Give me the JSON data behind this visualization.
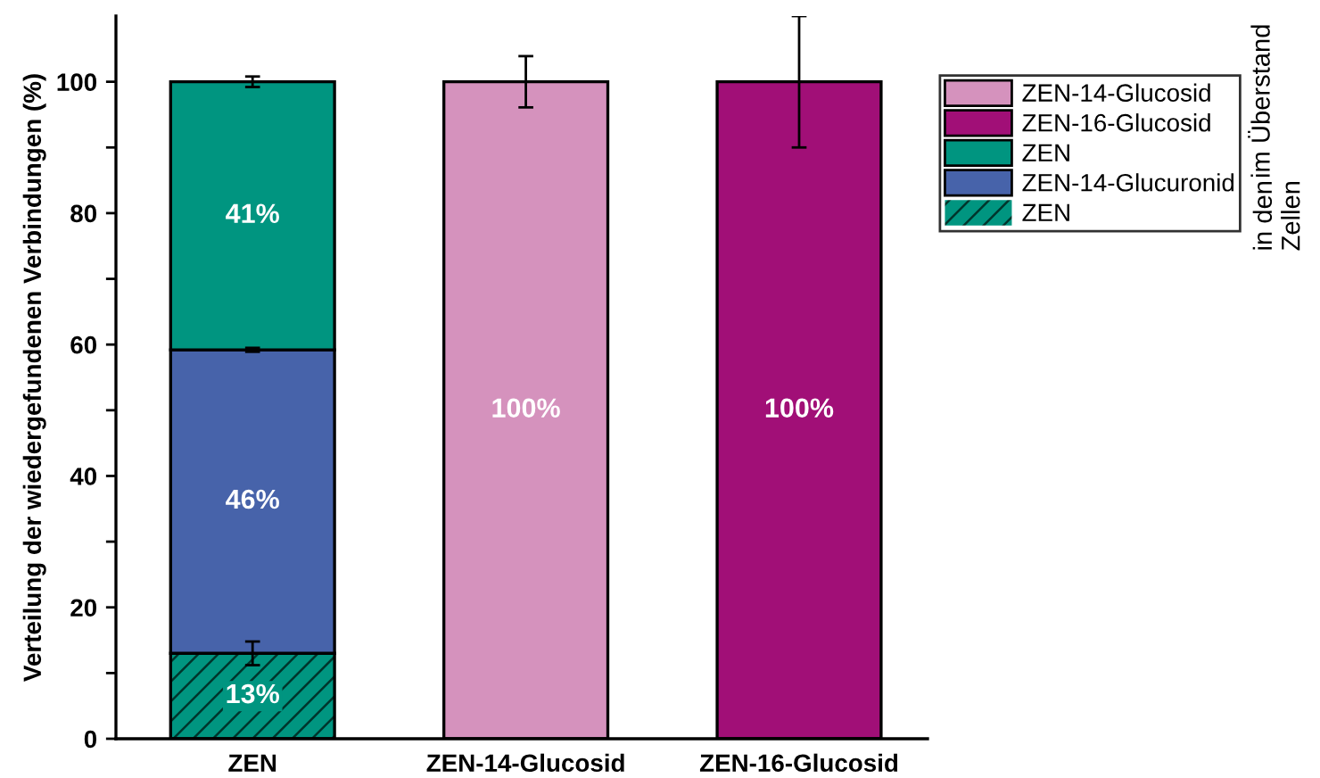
{
  "chart_data": {
    "type": "bar",
    "stacked": true,
    "ylabel": "Verteilung der wiedergefundenen Verbindungen (%)",
    "categories": [
      "ZEN",
      "ZEN-14-Glucosid",
      "ZEN-16-Glucosid"
    ],
    "series": [
      {
        "name": "ZEN",
        "color": "#009580",
        "values": [
          13,
          null,
          null
        ],
        "errors": [
          1.8,
          null,
          null
        ],
        "value_labels": [
          "13%",
          null,
          null
        ]
      },
      {
        "name": "ZEN-14-Glucuronid",
        "color": "#4763aa",
        "values": [
          46.2,
          null,
          null
        ],
        "errors": [
          0.3,
          null,
          null
        ],
        "value_labels": [
          "46%",
          null,
          null
        ]
      },
      {
        "name": "ZEN",
        "color": "#009580",
        "values": [
          40.8,
          null,
          null
        ],
        "errors": [
          0.8,
          null,
          null
        ],
        "value_labels": [
          "41%",
          null,
          null
        ]
      },
      {
        "name": "ZEN-16-Glucosid",
        "color": "#a10f77",
        "values": [
          null,
          null,
          100
        ],
        "errors": [
          null,
          null,
          10
        ],
        "value_labels": [
          null,
          null,
          "100%"
        ]
      },
      {
        "name": "ZEN-14-Glucosid",
        "color": "#d592bd",
        "values": [
          null,
          100,
          null
        ],
        "errors": [
          null,
          3.9,
          null
        ],
        "value_labels": [
          null,
          "100%",
          null
        ]
      }
    ],
    "ylim": [
      0,
      110
    ],
    "yticks": [
      0,
      {
        "value": 10,
        "label": null
      },
      20,
      {
        "value": 30,
        "label": null
      },
      40,
      {
        "value": 50,
        "label": null
      },
      60,
      {
        "value": 70,
        "label": null
      },
      80,
      {
        "value": 90,
        "label": null
      },
      100
    ],
    "grid": false,
    "legend": "right",
    "annotations": [
      "im Überstand",
      "in den\nZellen"
    ]
  }
}
